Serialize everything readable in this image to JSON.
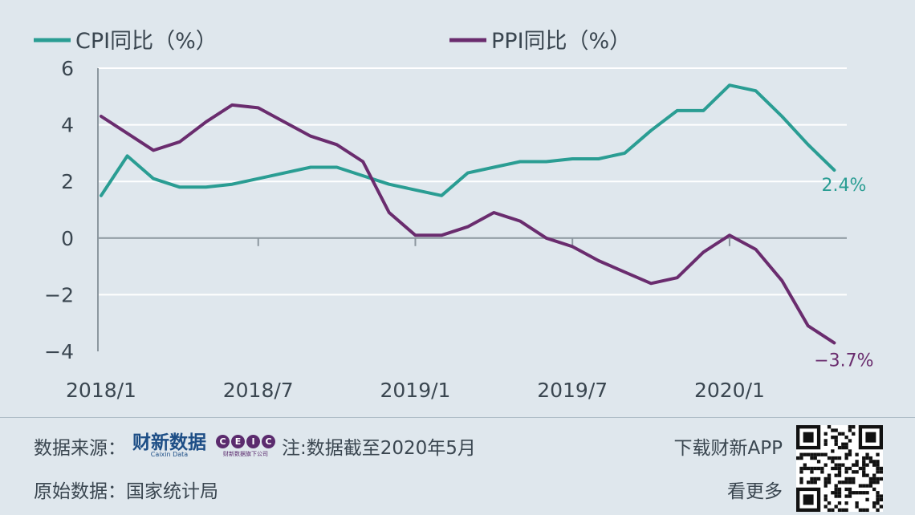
{
  "chart_data": {
    "type": "line",
    "x": [
      "2018/1",
      "2018/2",
      "2018/3",
      "2018/4",
      "2018/5",
      "2018/6",
      "2018/7",
      "2018/8",
      "2018/9",
      "2018/10",
      "2018/11",
      "2018/12",
      "2019/1",
      "2019/2",
      "2019/3",
      "2019/4",
      "2019/5",
      "2019/6",
      "2019/7",
      "2019/8",
      "2019/9",
      "2019/10",
      "2019/11",
      "2019/12",
      "2020/1",
      "2020/2",
      "2020/3",
      "2020/4",
      "2020/5"
    ],
    "x_tick_labels": [
      "2018/1",
      "2018/7",
      "2019/1",
      "2019/7",
      "2020/1"
    ],
    "y_ticks": [
      "6",
      "4",
      "2",
      "0",
      "−2",
      "−4"
    ],
    "ylim": [
      -4,
      6
    ],
    "series": [
      {
        "name": "CPI同比（%）",
        "color": "#2a9d93",
        "values": [
          1.5,
          2.9,
          2.1,
          1.8,
          1.8,
          1.9,
          2.1,
          2.3,
          2.5,
          2.5,
          2.2,
          1.9,
          1.7,
          1.5,
          2.3,
          2.5,
          2.7,
          2.7,
          2.8,
          2.8,
          3.0,
          3.8,
          4.5,
          4.5,
          5.4,
          5.2,
          4.3,
          3.3,
          2.4
        ],
        "end_label": "2.4%"
      },
      {
        "name": "PPI同比（%）",
        "color": "#6a2c6e",
        "values": [
          4.3,
          3.7,
          3.1,
          3.4,
          4.1,
          4.7,
          4.6,
          4.1,
          3.6,
          3.3,
          2.7,
          0.9,
          0.1,
          0.1,
          0.4,
          0.9,
          0.6,
          0.0,
          -0.3,
          -0.8,
          -1.2,
          -1.6,
          -1.4,
          -0.5,
          0.1,
          -0.4,
          -1.5,
          -3.1,
          -3.7
        ],
        "end_label": "−3.7%"
      }
    ],
    "grid": true,
    "legend_position": "top-left"
  },
  "footer": {
    "source_label": "数据来源：",
    "caixin_logo_text": "财新数据",
    "caixin_logo_sub": "Caixin Data",
    "ceic_letters": [
      "C",
      "E",
      "I",
      "C"
    ],
    "ceic_sub": "财新数据旗下公司",
    "note": "注:数据截至2020年5月",
    "original_label": "原始数据：国家统计局",
    "download_text": "下载财新APP",
    "more_text": "看更多"
  }
}
